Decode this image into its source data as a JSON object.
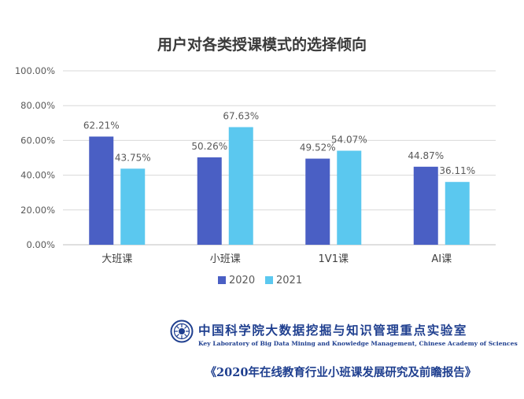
{
  "chart_data": {
    "type": "bar",
    "title": "用户对各类授课模式的选择倾向",
    "categories": [
      "大班课",
      "小班课",
      "1V1课",
      "AI课"
    ],
    "series": [
      {
        "name": "2020",
        "values": [
          62.21,
          50.26,
          49.52,
          44.87
        ],
        "labels": [
          "62.21%",
          "50.26%",
          "49.52%",
          "44.87%"
        ],
        "color": "#4a5fc4"
      },
      {
        "name": "2021",
        "values": [
          43.75,
          67.63,
          54.07,
          36.11
        ],
        "labels": [
          "43.75%",
          "67.63%",
          "54.07%",
          "36.11%"
        ],
        "color": "#5bc8ef"
      }
    ],
    "yticks": [
      "0.00%",
      "20.00%",
      "40.00%",
      "60.00%",
      "80.00%",
      "100.00%"
    ],
    "ylim": [
      0,
      100
    ],
    "grid": true,
    "legend": "bottom"
  },
  "footer": {
    "lab_name_zh": "中国科学院大数据挖掘与知识管理重点实验室",
    "lab_name_en": "Key Laboratory of Big Data Mining and Knowledge Management, Chinese Academy of Sciences",
    "report_title": "《2020年在线教育行业小班课发展研究及前瞻报告》",
    "logo_icon": "cas-emblem-icon"
  }
}
